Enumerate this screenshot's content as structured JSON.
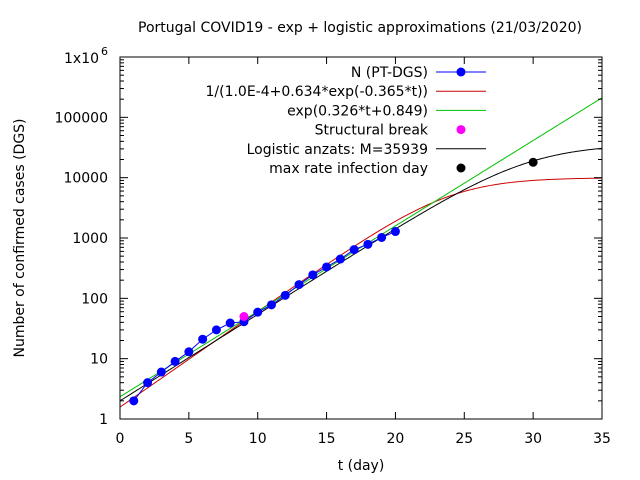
{
  "chart_data": {
    "type": "line",
    "title": "Portugal COVID19 - exp + logistic approximations (21/03/2020)",
    "xlabel": "t (day)",
    "ylabel": "Number of confirmed cases (DGS)",
    "xlim": [
      0,
      35
    ],
    "ylim": [
      1,
      1000000
    ],
    "y_scale": "log",
    "grid": false,
    "legend_position": "top-right",
    "x_ticks": [
      "0",
      "5",
      "10",
      "15",
      "20",
      "25",
      "30",
      "35"
    ],
    "y_ticks": [
      "1",
      "10",
      "100",
      "1000",
      "10000",
      "100000"
    ],
    "y_top_tick": {
      "mantissa": "1x10",
      "exponent": "6"
    },
    "series": [
      {
        "name": "N (PT-DGS)",
        "kind": "points",
        "color": "#0000ff",
        "x": [
          1,
          2,
          3,
          4,
          5,
          6,
          7,
          8,
          9,
          10,
          11,
          12,
          13,
          14,
          15,
          16,
          17,
          18,
          19,
          20
        ],
        "y": [
          2,
          4,
          6,
          9,
          13,
          21,
          30,
          39,
          41,
          59,
          78,
          112,
          169,
          245,
          331,
          448,
          642,
          785,
          1020,
          1280
        ]
      },
      {
        "name": "1/(1.0E-4+0.634*exp(-0.365*t))",
        "kind": "line",
        "color": "#cc0000",
        "formula": "1/(1.0E-4+0.634*exp(-0.365*t))"
      },
      {
        "name": "exp(0.326*t+0.849)",
        "kind": "line",
        "color": "#00c000",
        "formula": "exp(0.326*t+0.849)"
      },
      {
        "name": "Structural break",
        "kind": "points",
        "color": "#ff00ff",
        "x": [
          9
        ],
        "y": [
          50
        ]
      },
      {
        "name": "Logistic anzats: M=35939",
        "kind": "line",
        "color": "#000000",
        "formula": "35939/(1+17970*exp(-0.330*t))"
      },
      {
        "name": "max rate infection day",
        "kind": "points",
        "color": "#000000",
        "x": [
          30
        ],
        "y": [
          18000
        ]
      }
    ]
  }
}
